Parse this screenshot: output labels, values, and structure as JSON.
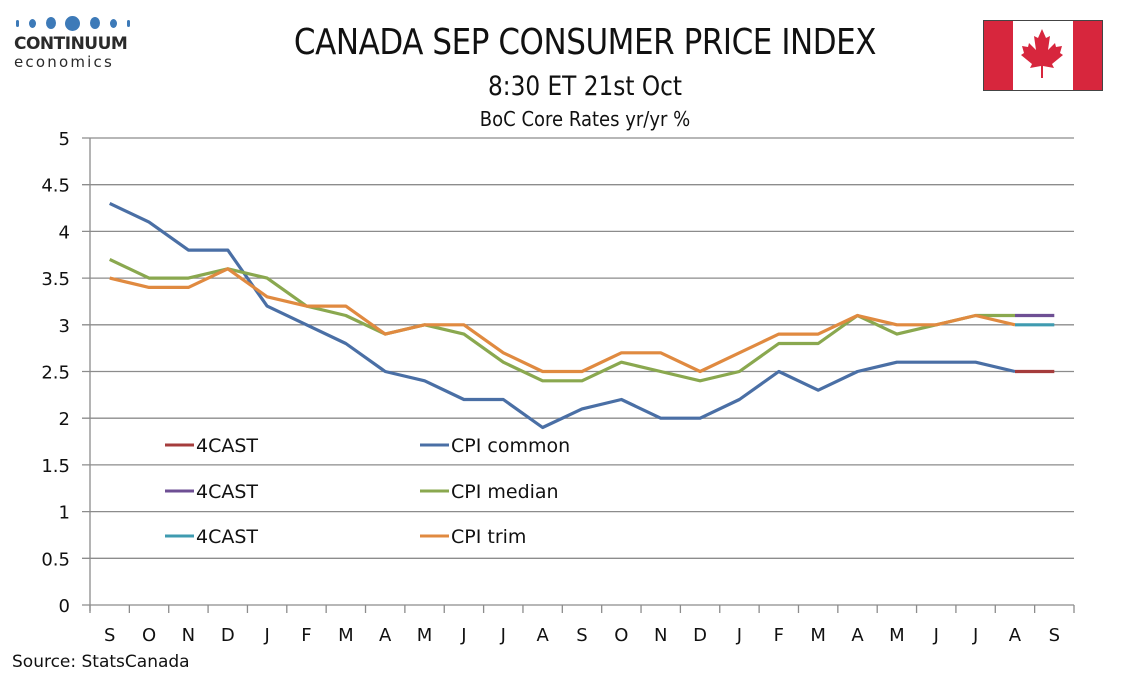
{
  "logo": {
    "name_line1": "CONTINUUM",
    "name_line2": "economics",
    "dot_color": "#3d7ab8"
  },
  "header": {
    "title": "CANADA SEP CONSUMER PRICE INDEX",
    "subtitle": "8:30 ET 21st Oct",
    "subtitle2": "BoC Core Rates yr/yr %"
  },
  "flag": {
    "name": "Canada",
    "red": "#d7263d"
  },
  "source": "Source: StatsCanada",
  "chart_data": {
    "type": "line",
    "title": "BoC Core Rates yr/yr %",
    "xlabel": "",
    "ylabel": "",
    "ylim": [
      0,
      5
    ],
    "yticks": [
      "0",
      "0.5",
      "1",
      "1.5",
      "2",
      "2.5",
      "3",
      "3.5",
      "4",
      "4.5",
      "5"
    ],
    "grid": true,
    "legend_position": "bottom-left inside plot",
    "categories": [
      "S",
      "O",
      "N",
      "D",
      "J",
      "F",
      "M",
      "A",
      "M",
      "J",
      "J",
      "A",
      "S",
      "O",
      "N",
      "D",
      "J",
      "F",
      "M",
      "A",
      "M",
      "J",
      "J",
      "A",
      "S"
    ],
    "series": [
      {
        "name": "CPI common",
        "color": "#4a6fa5",
        "values": [
          4.3,
          4.1,
          3.8,
          3.8,
          3.2,
          3.0,
          2.8,
          2.5,
          2.4,
          2.2,
          2.2,
          1.9,
          2.1,
          2.2,
          2.0,
          2.0,
          2.2,
          2.5,
          2.3,
          2.5,
          2.6,
          2.6,
          2.6,
          2.5,
          null
        ]
      },
      {
        "name": "CPI median",
        "color": "#8aa84f",
        "values": [
          3.7,
          3.5,
          3.5,
          3.6,
          3.5,
          3.2,
          3.1,
          2.9,
          3.0,
          2.9,
          2.6,
          2.4,
          2.4,
          2.6,
          2.5,
          2.4,
          2.5,
          2.8,
          2.8,
          3.1,
          2.9,
          3.0,
          3.1,
          3.1,
          null
        ]
      },
      {
        "name": "CPI trim",
        "color": "#e08a40",
        "values": [
          3.5,
          3.4,
          3.4,
          3.6,
          3.3,
          3.2,
          3.2,
          2.9,
          3.0,
          3.0,
          2.7,
          2.5,
          2.5,
          2.7,
          2.7,
          2.5,
          2.7,
          2.9,
          2.9,
          3.1,
          3.0,
          3.0,
          3.1,
          3.0,
          null
        ]
      },
      {
        "name": "4CAST",
        "color": "#a53c3c",
        "values": [
          null,
          null,
          null,
          null,
          null,
          null,
          null,
          null,
          null,
          null,
          null,
          null,
          null,
          null,
          null,
          null,
          null,
          null,
          null,
          null,
          null,
          null,
          null,
          2.5,
          2.5
        ]
      },
      {
        "name": "4CAST",
        "color": "#6e4f94",
        "values": [
          null,
          null,
          null,
          null,
          null,
          null,
          null,
          null,
          null,
          null,
          null,
          null,
          null,
          null,
          null,
          null,
          null,
          null,
          null,
          null,
          null,
          null,
          null,
          3.1,
          3.1
        ]
      },
      {
        "name": "4CAST",
        "color": "#3f9bb0",
        "values": [
          null,
          null,
          null,
          null,
          null,
          null,
          null,
          null,
          null,
          null,
          null,
          null,
          null,
          null,
          null,
          null,
          null,
          null,
          null,
          null,
          null,
          null,
          null,
          3.0,
          3.0
        ]
      }
    ],
    "legend": [
      {
        "label": "4CAST",
        "color": "#a53c3c"
      },
      {
        "label": "CPI common",
        "color": "#4a6fa5"
      },
      {
        "label": "4CAST",
        "color": "#6e4f94"
      },
      {
        "label": "CPI median",
        "color": "#8aa84f"
      },
      {
        "label": "4CAST",
        "color": "#3f9bb0"
      },
      {
        "label": "CPI trim",
        "color": "#e08a40"
      }
    ]
  }
}
